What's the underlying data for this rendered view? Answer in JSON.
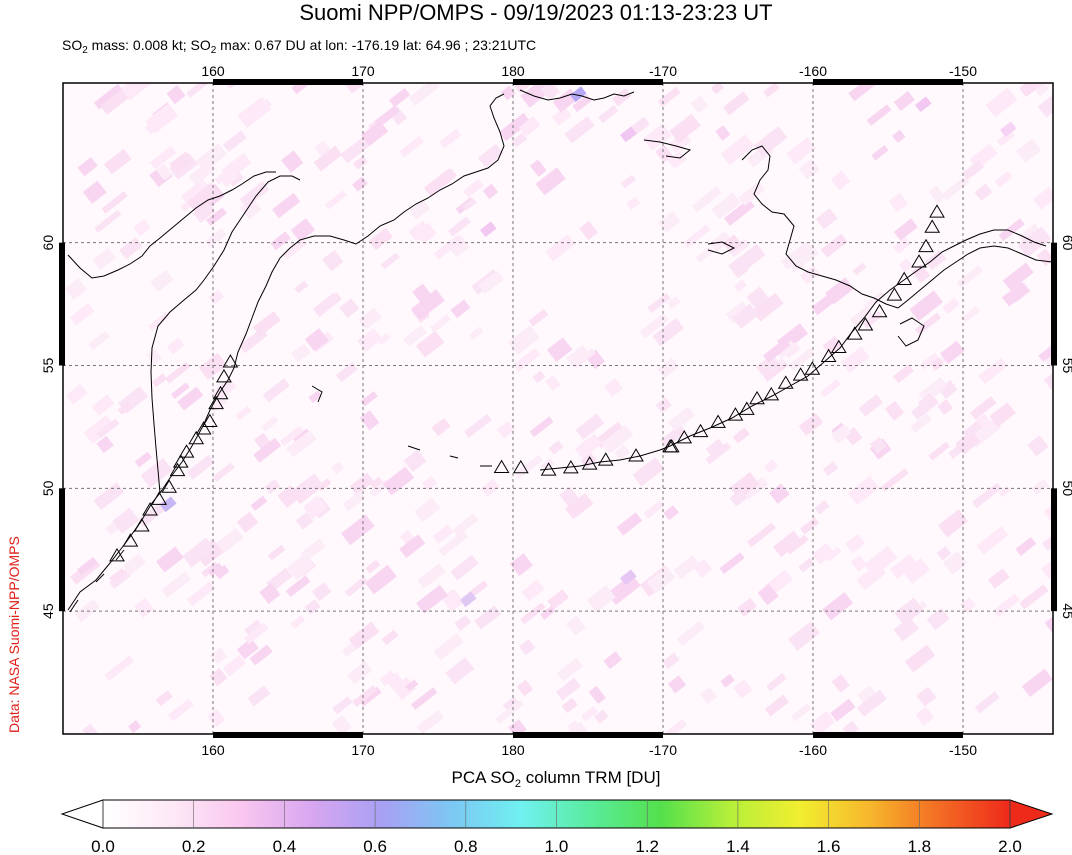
{
  "header": {
    "title": "Suomi NPP/OMPS - 09/19/2023 01:13-23:23 UT",
    "subtitle_parts": {
      "p1": "SO",
      "sub1": "2",
      "p2": " mass: 0.008 kt; SO",
      "sub2": "2",
      "p3": " max: 0.67 DU at lon: -176.19 lat: 64.96 ; 23:21UTC"
    }
  },
  "credit": "Data: NASA Suomi-NPP/OMPS",
  "map": {
    "lon_ticks": [
      "160",
      "170",
      "180",
      "-170",
      "-160",
      "-150"
    ],
    "lat_ticks": [
      "60",
      "55",
      "50",
      "45"
    ],
    "lon_range": [
      150,
      216
    ],
    "lat_range": [
      40,
      66.5
    ],
    "volcano_count": 46
  },
  "colorbar": {
    "label_parts": {
      "p1": "PCA SO",
      "sub": "2",
      "p2": " column TRM [DU]"
    },
    "ticks": [
      "0.0",
      "0.2",
      "0.4",
      "0.6",
      "0.8",
      "1.0",
      "1.2",
      "1.4",
      "1.6",
      "1.8",
      "2.0"
    ],
    "range": [
      0,
      2
    ],
    "colors": [
      "#ffffff",
      "#fde8f6",
      "#f9c6ef",
      "#d8a6f0",
      "#a8a0f3",
      "#7cc8f3",
      "#70f0f0",
      "#59ec9c",
      "#54e04c",
      "#b6ef3a",
      "#f2ee2f",
      "#f6b62c",
      "#f36b24",
      "#ee2a1b"
    ]
  }
}
